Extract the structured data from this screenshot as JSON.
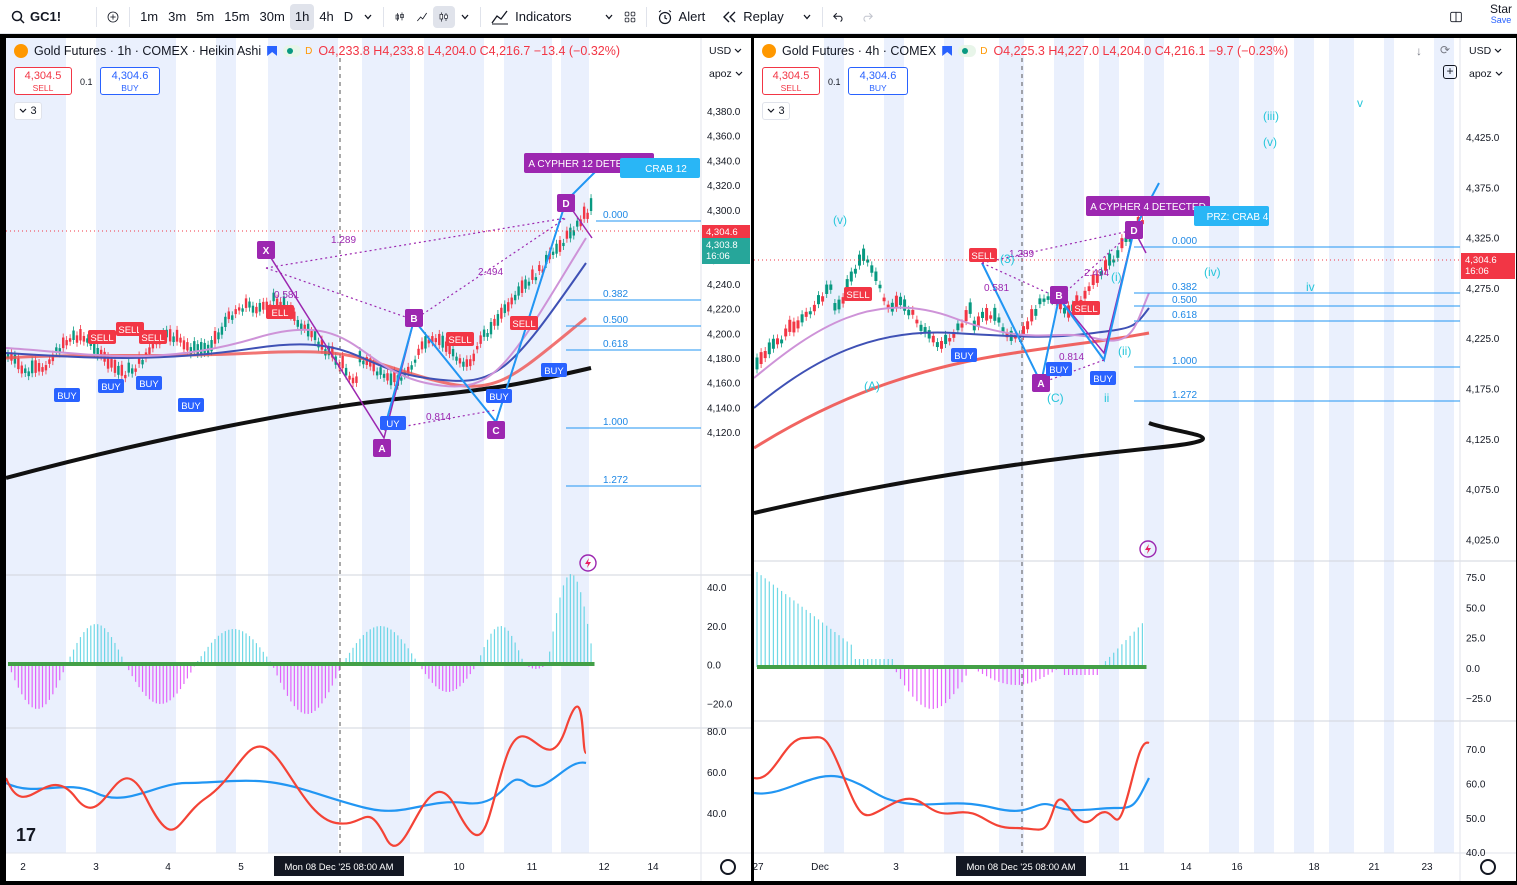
{
  "toolbar": {
    "symbol": "GC1!",
    "intervals": [
      "1m",
      "3m",
      "5m",
      "15m",
      "30m",
      "1h",
      "4h",
      "D"
    ],
    "active_interval": "1h",
    "indicators_label": "Indicators",
    "alert_label": "Alert",
    "replay_label": "Replay",
    "star_label": "Star",
    "save_label": "Save"
  },
  "left": {
    "title": "Gold Futures · 1h · COMEX · Heikin Ashi",
    "ohlc": "O4,233.8  H4,233.8  L4,204.0  C4,216.7  −13.4 (−0.32%)",
    "sell_price": "4,304.5",
    "sell_label": "SELL",
    "buy_price": "4,304.6",
    "buy_label": "BUY",
    "qty": "0.1",
    "collapse": "3",
    "currency": "USD",
    "scale_mode": "apoz",
    "price_ticks": [
      "4,380.0",
      "4,360.0",
      "4,340.0",
      "4,320.0",
      "4,300.0",
      "4,280.0",
      "4,260.0",
      "4,240.0",
      "4,220.0",
      "4,200.0",
      "4,180.0",
      "4,160.0",
      "4,140.0",
      "4,120.0"
    ],
    "last_price": "4,304.6",
    "mid_price": "4,303.8",
    "countdown": "16:06",
    "osc_ticks": [
      "40.0",
      "20.0",
      "0.0",
      "−20.0"
    ],
    "rsi_ticks": [
      "80.0",
      "60.0",
      "40.0"
    ],
    "time_ticks": [
      "2",
      "3",
      "4",
      "5",
      "10",
      "11",
      "12",
      "14"
    ],
    "crosshair_time": "Mon 08 Dec '25   08:00 AM",
    "pattern_label": "A CYPHER 12 DETECTED",
    "crab_label": "CRAB 12",
    "fib_levels": [
      "0.000",
      "0.382",
      "0.500",
      "0.618",
      "1.000",
      "1.272"
    ],
    "ratios": [
      "1.289",
      "0.581",
      "2.494",
      "0.814"
    ],
    "points": [
      "X",
      "A",
      "B",
      "C",
      "D"
    ],
    "signals_sell": [
      "SELL",
      "SELL",
      "SELL",
      "ELL",
      "SELL",
      "SELL"
    ],
    "signals_buy": [
      "BUY",
      "BUY",
      "BUY",
      "BUY",
      "UY",
      "BUY",
      "BUY"
    ]
  },
  "right": {
    "title": "Gold Futures · 4h · COMEX",
    "ohlc": "O4,225.3  H4,227.0  L4,204.0  C4,216.1  −9.7 (−0.23%)",
    "sell_price": "4,304.5",
    "sell_label": "SELL",
    "buy_price": "4,304.6",
    "buy_label": "BUY",
    "qty": "0.1",
    "collapse": "3",
    "currency": "USD",
    "scale_mode": "apoz",
    "price_ticks": [
      "4,425.0",
      "4,375.0",
      "4,325.0",
      "4,275.0",
      "4,225.0",
      "4,175.0",
      "4,125.0",
      "4,075.0",
      "4,025.0"
    ],
    "last_price": "4,304.6",
    "countdown": "16:06",
    "osc_ticks": [
      "75.0",
      "50.0",
      "25.0",
      "0.0",
      "−25.0"
    ],
    "rsi_ticks": [
      "70.0",
      "60.0",
      "50.0",
      "40.0"
    ],
    "time_ticks": [
      "27",
      "Dec",
      "3",
      "11",
      "14",
      "16",
      "18",
      "21",
      "23"
    ],
    "crosshair_time": "Mon 08 Dec '25   08:00 AM",
    "pattern_label": "A CYPHER 4 DETECTED",
    "crab_label": "PRZ: CRAB 4",
    "fib_levels": [
      "0.000",
      "0.382",
      "0.500",
      "0.618",
      "1.000",
      "1.272"
    ],
    "ratios": [
      "1.289",
      "0.581",
      "2.494",
      "0.814"
    ],
    "waves": [
      "(v)",
      "(iii)",
      "(v)",
      "v",
      "(iv)",
      "iv",
      "(A)",
      "(C)",
      "(i)",
      "(ii)",
      "ii",
      "(3)"
    ],
    "points": [
      "A",
      "B",
      "D"
    ]
  },
  "colors": {
    "sell": "#f23645",
    "buy": "#2962ff",
    "pattern": "#9c27b0",
    "fib": "#2196f3",
    "wave": "#26c6da"
  }
}
